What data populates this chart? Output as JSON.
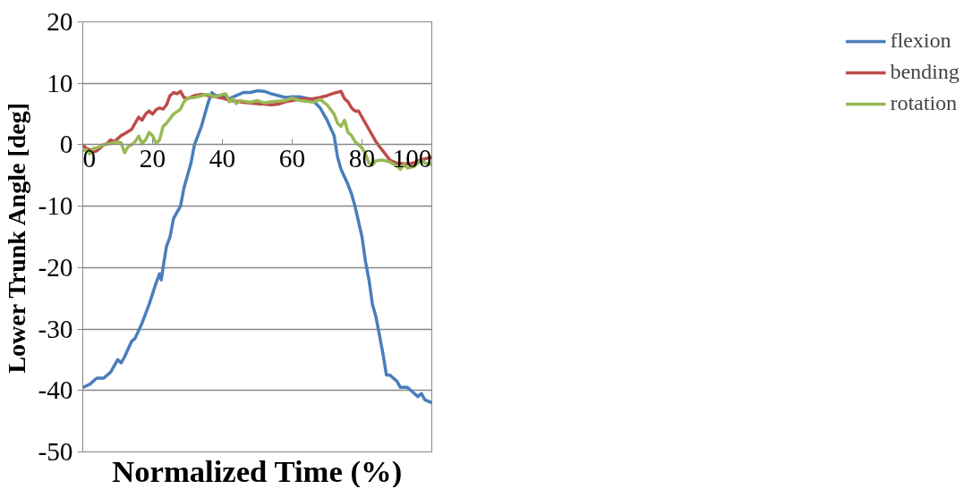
{
  "chart_data": {
    "type": "line",
    "xlabel": "Normalized Time (%)",
    "ylabel": "Lower Trunk Angle [deg]",
    "xlim": [
      0,
      100
    ],
    "xticks": [
      0,
      20,
      40,
      60,
      80,
      100
    ],
    "ylim": [
      -50,
      20
    ],
    "yticks": [
      -50,
      -40,
      -30,
      -20,
      -10,
      0,
      10,
      20
    ],
    "grid": "y",
    "legend": "right",
    "line_style": "solid",
    "marker": "none",
    "series": [
      {
        "name": "flexion",
        "color": "#4a7ebb",
        "x": [
          0,
          2,
          4,
          6,
          8,
          10,
          11,
          12,
          14,
          15,
          17,
          19,
          21,
          22,
          22.5,
          23,
          24,
          25,
          26,
          28,
          29,
          31,
          32,
          34,
          35,
          36,
          37,
          38,
          40,
          42,
          44,
          46,
          48,
          50,
          52,
          54,
          56,
          58,
          60,
          62,
          64,
          66,
          68,
          70,
          72,
          73,
          74,
          76,
          77,
          78,
          80,
          81,
          82,
          83,
          84,
          85,
          86,
          87,
          88,
          90,
          91,
          93,
          94,
          96,
          97,
          98,
          100
        ],
        "values": [
          -39.5,
          -39,
          -38,
          -38,
          -37,
          -35,
          -35.5,
          -34.5,
          -32,
          -31.5,
          -29,
          -26,
          -22.5,
          -21,
          -22,
          -20,
          -16.5,
          -15,
          -12,
          -10,
          -7,
          -3,
          0,
          3,
          5,
          7,
          8.5,
          8,
          8,
          7.5,
          8,
          8.5,
          8.5,
          8.8,
          8.7,
          8.3,
          8,
          7.7,
          7.8,
          7.8,
          7.6,
          7.2,
          6,
          4,
          1.5,
          -2,
          -4,
          -6.5,
          -8,
          -10,
          -15,
          -19,
          -22,
          -26,
          -28,
          -31,
          -34,
          -37.5,
          -37.5,
          -38.5,
          -39.5,
          -39.5,
          -40,
          -41,
          -40.5,
          -41.5,
          -42
        ]
      },
      {
        "name": "bending",
        "color": "#be4b48",
        "x": [
          0,
          1,
          2,
          3,
          4,
          5,
          6,
          7,
          8,
          9,
          11,
          12,
          14,
          15,
          16,
          17,
          18,
          19,
          20,
          21,
          22,
          23,
          24,
          25,
          26,
          27,
          28,
          29,
          30,
          32,
          34,
          36,
          38,
          40,
          42,
          44,
          46,
          48,
          50,
          52,
          54,
          56,
          58,
          60,
          62,
          64,
          66,
          68,
          70,
          72,
          74,
          75,
          76,
          77,
          78,
          79,
          80,
          82,
          83,
          84,
          85,
          86,
          88,
          90,
          92,
          94,
          96,
          98,
          100
        ],
        "values": [
          0,
          -0.6,
          -0.8,
          -1.2,
          -1,
          -0.5,
          0,
          0.2,
          0.8,
          0.5,
          1.5,
          1.8,
          2.5,
          3.5,
          4.5,
          4,
          5,
          5.5,
          5,
          5.7,
          6,
          5.8,
          6.5,
          8,
          8.5,
          8.3,
          8.7,
          7.7,
          7.5,
          8,
          8.2,
          8,
          7.8,
          7.6,
          7.2,
          7.1,
          6.9,
          6.8,
          6.7,
          6.6,
          6.5,
          6.6,
          7,
          7.2,
          7.4,
          7.5,
          7.5,
          7.7,
          8,
          8.4,
          8.7,
          7.5,
          7,
          6,
          5.5,
          5.5,
          4.5,
          2.5,
          1.5,
          0.5,
          -0.3,
          -1,
          -2.5,
          -3,
          -3.1,
          -3.1,
          -2.7,
          -2.3,
          -2
        ]
      },
      {
        "name": "rotation",
        "color": "#98b954",
        "x": [
          0,
          1,
          2,
          3,
          4,
          6,
          8,
          10,
          11,
          12,
          13,
          14,
          15,
          16,
          17,
          18,
          19,
          20,
          21,
          22,
          23,
          24,
          26,
          27,
          28,
          29,
          30,
          32,
          34,
          36,
          38,
          40,
          41,
          42,
          43,
          44,
          45,
          46,
          48,
          50,
          52,
          54,
          56,
          58,
          60,
          62,
          64,
          66,
          68,
          70,
          72,
          73,
          74,
          75,
          76,
          77,
          78,
          79,
          80,
          81,
          82,
          83,
          84,
          86,
          88,
          90,
          91,
          92,
          93,
          95,
          96,
          97,
          98,
          100
        ],
        "values": [
          -1,
          -0.8,
          -1.5,
          -0.6,
          -0.5,
          0,
          0.2,
          0.5,
          0.3,
          -1.3,
          -0.3,
          0,
          0.5,
          1.4,
          0.2,
          0.8,
          2,
          1.5,
          0.2,
          0.8,
          3,
          3.5,
          5,
          5.4,
          5.8,
          7,
          7.6,
          7.7,
          8,
          8.2,
          7.8,
          8.2,
          8.3,
          7,
          7.5,
          6.7,
          7.2,
          7.1,
          6.9,
          7.2,
          6.8,
          7,
          7.1,
          7.2,
          7.6,
          7.2,
          7.1,
          6.9,
          7.4,
          6.5,
          5,
          3.5,
          3,
          4,
          2,
          1.5,
          0.5,
          0,
          -0.5,
          -1.5,
          -3,
          -3.3,
          -2.6,
          -2.5,
          -2.8,
          -3.5,
          -4,
          -3.2,
          -3.8,
          -3.5,
          -3,
          -2.5,
          -3,
          -3.2
        ]
      }
    ]
  }
}
